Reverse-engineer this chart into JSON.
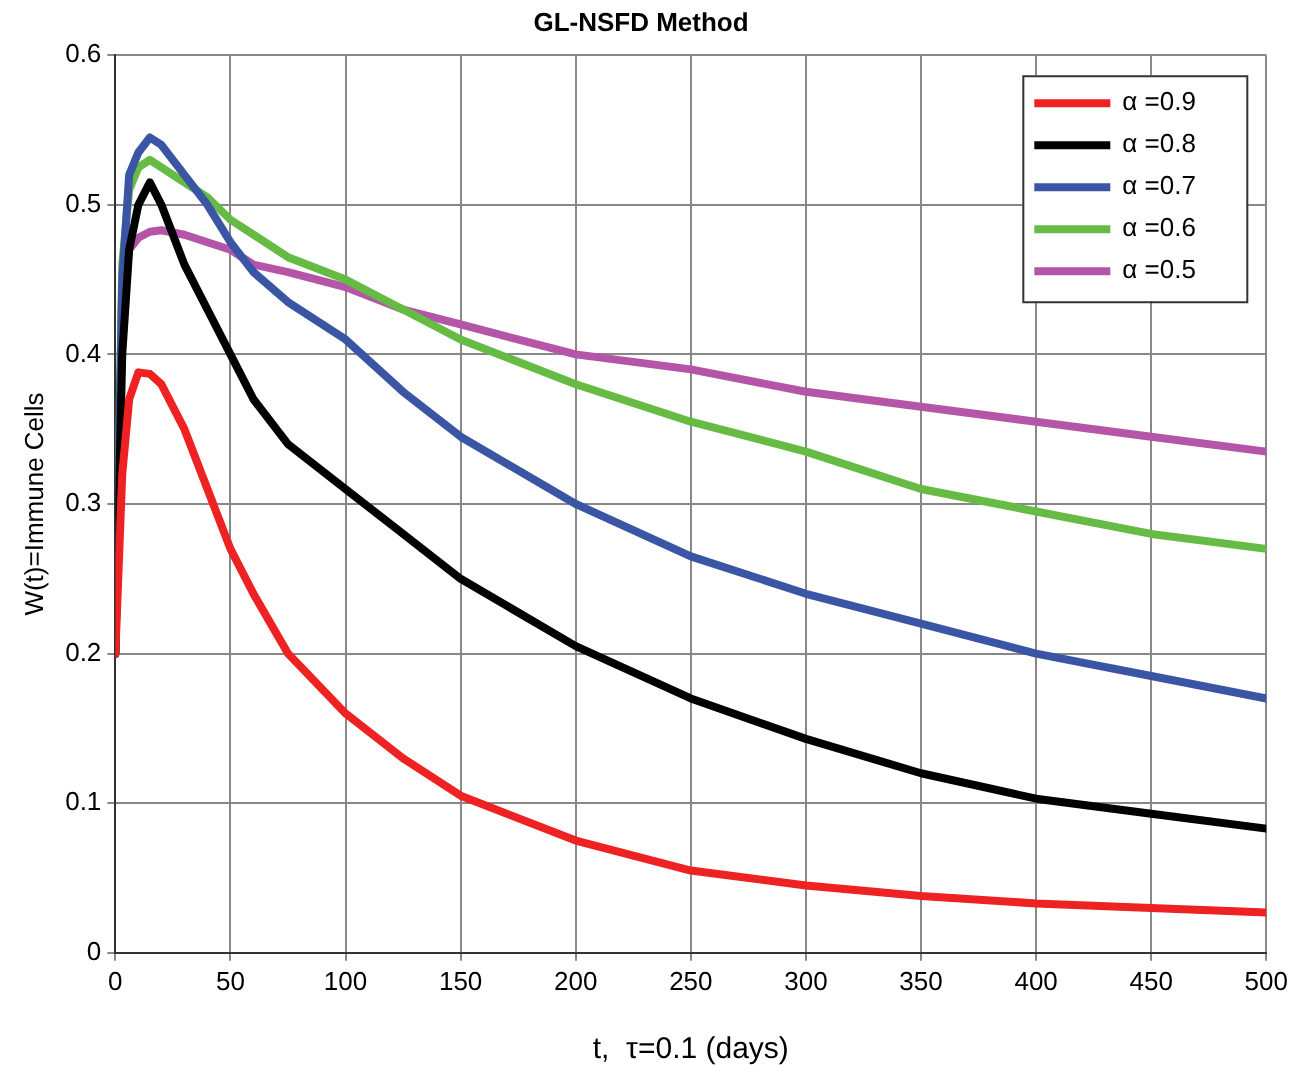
{
  "chart_data": {
    "type": "line",
    "title": "GL-NSFD Method",
    "xlabel": "t,  τ=0.1 (days)",
    "ylabel": "W(t)=Immune Cells",
    "x": [
      0,
      3,
      6,
      10,
      15,
      20,
      30,
      40,
      50,
      60,
      75,
      100,
      125,
      150,
      200,
      250,
      300,
      350,
      400,
      450,
      500
    ],
    "series": [
      {
        "name": "α =0.9",
        "color": "#ee2222",
        "values": [
          0.2,
          0.32,
          0.37,
          0.388,
          0.387,
          0.38,
          0.35,
          0.31,
          0.27,
          0.24,
          0.2,
          0.16,
          0.13,
          0.105,
          0.075,
          0.055,
          0.045,
          0.038,
          0.033,
          0.03,
          0.027
        ]
      },
      {
        "name": "α =0.8",
        "color": "#000000",
        "values": [
          0.2,
          0.4,
          0.47,
          0.5,
          0.515,
          0.5,
          0.46,
          0.43,
          0.4,
          0.37,
          0.34,
          0.31,
          0.28,
          0.25,
          0.205,
          0.17,
          0.143,
          0.12,
          0.103,
          0.093,
          0.083
        ]
      },
      {
        "name": "α =0.7",
        "color": "#3a55a4",
        "values": [
          0.2,
          0.45,
          0.52,
          0.535,
          0.545,
          0.54,
          0.52,
          0.5,
          0.475,
          0.455,
          0.435,
          0.41,
          0.375,
          0.345,
          0.3,
          0.265,
          0.24,
          0.22,
          0.2,
          0.185,
          0.17
        ]
      },
      {
        "name": "α =0.6",
        "color": "#66bb44",
        "values": [
          0.2,
          0.46,
          0.51,
          0.525,
          0.53,
          0.525,
          0.515,
          0.505,
          0.49,
          0.48,
          0.465,
          0.45,
          0.43,
          0.41,
          0.38,
          0.355,
          0.335,
          0.31,
          0.295,
          0.28,
          0.27
        ]
      },
      {
        "name": "α =0.5",
        "color": "#b455a8",
        "values": [
          0.2,
          0.44,
          0.47,
          0.478,
          0.482,
          0.483,
          0.48,
          0.475,
          0.47,
          0.46,
          0.455,
          0.445,
          0.43,
          0.42,
          0.4,
          0.39,
          0.375,
          0.365,
          0.355,
          0.345,
          0.335
        ]
      }
    ],
    "xlim": [
      0,
      500
    ],
    "xticks": [
      0,
      50,
      100,
      150,
      200,
      250,
      300,
      350,
      400,
      450,
      500
    ],
    "ylim": [
      0,
      0.6
    ],
    "yticks": [
      0,
      0.1,
      0.2,
      0.3,
      0.4,
      0.5,
      0.6
    ],
    "grid": true,
    "legend": "top right",
    "marker": "none",
    "line_style": "solid"
  }
}
